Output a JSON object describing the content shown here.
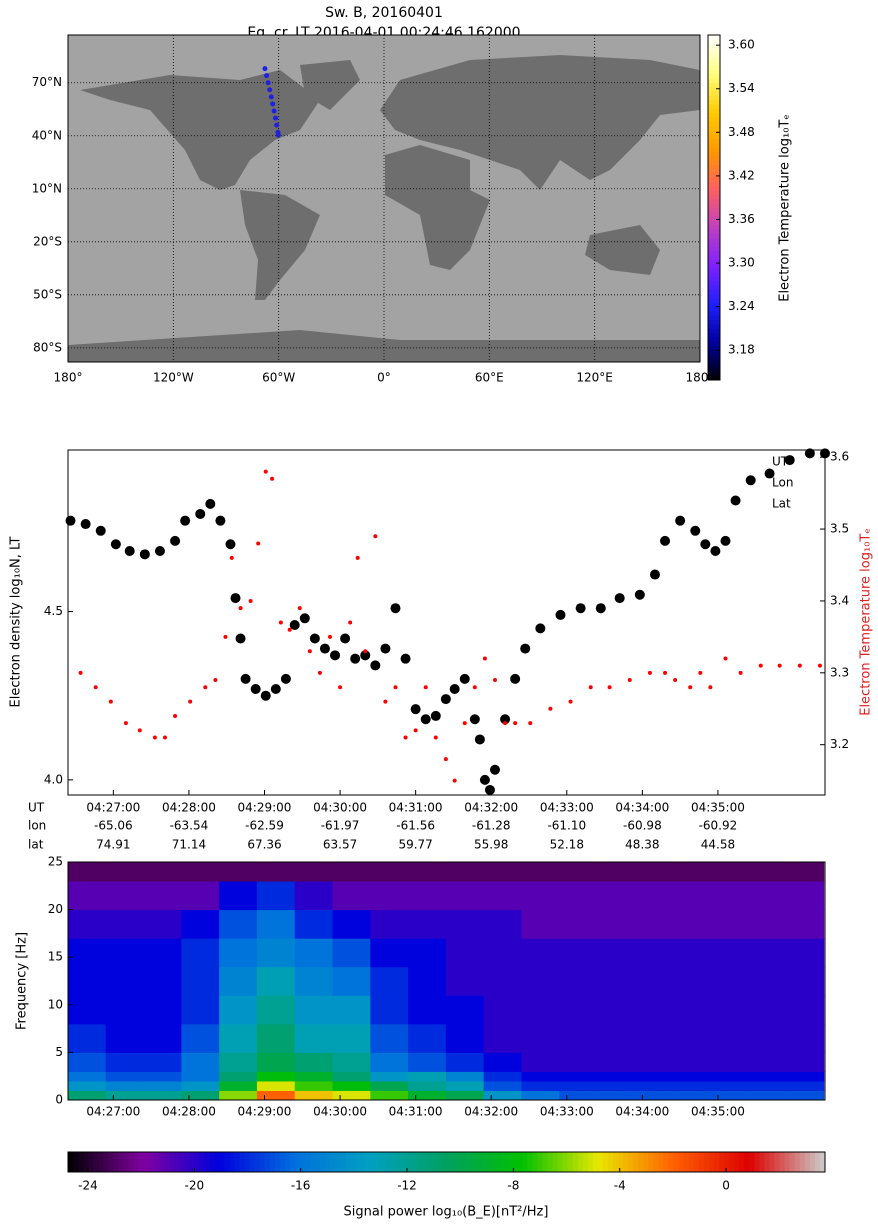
{
  "chart_data": [
    {
      "type": "map",
      "title": "Sw. B, 20160401",
      "subtitle": "Eq. cr. LT  2016-04-01 00:24:46.162000",
      "xlim": [
        -180,
        180
      ],
      "ylim": [
        -88,
        97
      ],
      "xticks": [
        {
          "value": -180,
          "label": "180°"
        },
        {
          "value": -120,
          "label": "120°W"
        },
        {
          "value": -60,
          "label": "60°W"
        },
        {
          "value": 0,
          "label": "0°"
        },
        {
          "value": 60,
          "label": "60°E"
        },
        {
          "value": 120,
          "label": "120°E"
        },
        {
          "value": 180,
          "label": "180°"
        }
      ],
      "yticks": [
        {
          "value": 70,
          "label": "70°N"
        },
        {
          "value": 40,
          "label": "40°N"
        },
        {
          "value": 10,
          "label": "10°N"
        },
        {
          "value": -20,
          "label": "20°S"
        },
        {
          "value": -50,
          "label": "50°S"
        },
        {
          "value": -80,
          "label": "80°S"
        }
      ],
      "grid": true,
      "color": "#2020e0",
      "x": [
        -67.8,
        -66.9,
        -66.0,
        -65.1,
        -64.2,
        -63.4,
        -62.6,
        -61.8,
        -61.1,
        -60.4,
        -60.2
      ],
      "y": [
        78,
        74,
        70,
        66,
        62,
        58,
        54,
        50,
        46,
        42,
        40.4
      ],
      "colorbar": {
        "label": "Electron Temperature log₁₀Tₑ",
        "lim": [
          3.139,
          3.614
        ],
        "ticks": [
          3.18,
          3.24,
          {
            "value": 3.3,
            "label": "3.30"
          },
          3.36,
          3.42,
          3.48,
          3.54,
          {
            "value": 3.6,
            "label": "3.60"
          }
        ],
        "colormap": [
          "#000000",
          "#0000a0",
          "#2020ff",
          "#8020ff",
          "#c040c0",
          "#ff6060",
          "#ff9900",
          "#ffcc00",
          "#ffff80",
          "#ffffff"
        ]
      }
    },
    {
      "type": "scatter",
      "ylabel": "Electron density log₁₀N, LT",
      "y2label": "Electron Temperature log₁₀Tₑ",
      "xlim": [
        "04:26:24",
        "04:36:25"
      ],
      "xticks": [
        "04:27:00",
        "04:28:00",
        "04:29:00",
        "04:30:00",
        "04:31:00",
        "04:32:00",
        "04:33:00",
        "04:34:00",
        "04:35:00"
      ],
      "ylim": [
        3.955,
        4.98
      ],
      "yticks": [
        {
          "value": 4,
          "label": "4.0"
        },
        4.5
      ],
      "y2lim": [
        3.13,
        3.61
      ],
      "y2ticks": [
        3.2,
        3.3,
        3.4,
        3.5,
        3.6
      ],
      "legend_labels": [
        "UT",
        "Lon",
        "Lat"
      ],
      "table": {
        "row_labels": [
          "UT",
          "lon",
          "lat"
        ],
        "lon": [
          "-65.06",
          "-63.54",
          "-62.59",
          "-61.97",
          "-61.56",
          "-61.28",
          "-61.10",
          "-60.98",
          "-60.92"
        ],
        "lat": [
          "74.91",
          "71.14",
          "67.36",
          "63.57",
          "59.77",
          "55.98",
          "52.18",
          "48.38",
          "44.58"
        ]
      },
      "series": [
        {
          "color": "#000000",
          "x": [
            "04:26:26",
            "04:26:38",
            "04:26:50",
            "04:27:02",
            "04:27:13",
            "04:27:25",
            "04:27:37",
            "04:27:49",
            "04:27:57",
            "04:28:09",
            "04:28:17",
            "04:28:25",
            "04:28:33",
            "04:28:37",
            "04:28:41",
            "04:28:45",
            "04:28:53",
            "04:29:01",
            "04:29:09",
            "04:29:17",
            "04:29:24",
            "04:29:32",
            "04:29:40",
            "04:29:48",
            "04:29:56",
            "04:30:04",
            "04:30:12",
            "04:30:20",
            "04:30:28",
            "04:30:36",
            "04:30:44",
            "04:30:52",
            "04:31:00",
            "04:31:08",
            "04:31:16",
            "04:31:24",
            "04:31:31",
            "04:31:39",
            "04:31:47",
            "04:31:51",
            "04:31:55",
            "04:31:59",
            "04:32:03",
            "04:32:11",
            "04:32:19",
            "04:32:27",
            "04:32:39",
            "04:32:55",
            "04:33:11",
            "04:33:27",
            "04:33:42",
            "04:33:58",
            "04:34:10",
            "04:34:18",
            "04:34:30",
            "04:34:42",
            "04:34:50",
            "04:34:58",
            "04:35:06",
            "04:35:14",
            "04:35:26",
            "04:35:41",
            "04:35:57",
            "04:36:13",
            "04:36:25"
          ],
          "values": [
            4.77,
            4.76,
            4.74,
            4.7,
            4.68,
            4.67,
            4.68,
            4.71,
            4.77,
            4.79,
            4.82,
            4.77,
            4.7,
            4.54,
            4.42,
            4.3,
            4.27,
            4.25,
            4.27,
            4.3,
            4.46,
            4.48,
            4.42,
            4.39,
            4.37,
            4.42,
            4.36,
            4.37,
            4.34,
            4.39,
            4.51,
            4.36,
            4.21,
            4.18,
            4.19,
            4.24,
            4.27,
            4.3,
            4.18,
            4.12,
            4.0,
            3.97,
            4.03,
            4.18,
            4.3,
            4.39,
            4.45,
            4.49,
            4.51,
            4.51,
            4.54,
            4.55,
            4.61,
            4.71,
            4.77,
            4.74,
            4.7,
            4.68,
            4.71,
            4.83,
            4.89,
            4.91,
            4.95,
            4.97,
            4.97
          ]
        },
        {
          "color": "#ff0000",
          "axis": "y2",
          "x": [
            "04:26:34",
            "04:26:46",
            "04:26:58",
            "04:27:10",
            "04:27:21",
            "04:27:33",
            "04:27:41",
            "04:27:49",
            "04:28:01",
            "04:28:13",
            "04:28:21",
            "04:28:29",
            "04:28:34",
            "04:28:41",
            "04:28:49",
            "04:28:55",
            "04:29:01",
            "04:29:06",
            "04:29:13",
            "04:29:20",
            "04:29:28",
            "04:29:36",
            "04:29:44",
            "04:29:52",
            "04:30:00",
            "04:30:08",
            "04:30:14",
            "04:30:20",
            "04:30:28",
            "04:30:36",
            "04:30:44",
            "04:30:52",
            "04:31:00",
            "04:31:08",
            "04:31:16",
            "04:31:24",
            "04:31:31",
            "04:31:39",
            "04:31:47",
            "04:31:55",
            "04:32:03",
            "04:32:11",
            "04:32:19",
            "04:32:31",
            "04:32:47",
            "04:33:03",
            "04:33:19",
            "04:33:34",
            "04:33:50",
            "04:34:06",
            "04:34:18",
            "04:34:26",
            "04:34:38",
            "04:34:46",
            "04:34:54",
            "04:35:06",
            "04:35:18",
            "04:35:34",
            "04:35:49",
            "04:36:05",
            "04:36:21"
          ],
          "values": [
            3.3,
            3.28,
            3.26,
            3.23,
            3.22,
            3.21,
            3.21,
            3.24,
            3.26,
            3.28,
            3.29,
            3.35,
            3.46,
            3.39,
            3.4,
            3.48,
            3.58,
            3.57,
            3.37,
            3.36,
            3.39,
            3.33,
            3.3,
            3.35,
            3.28,
            3.37,
            3.46,
            3.33,
            3.49,
            3.26,
            3.28,
            3.21,
            3.22,
            3.28,
            3.21,
            3.18,
            3.15,
            3.23,
            3.28,
            3.32,
            3.29,
            3.23,
            3.23,
            3.23,
            3.25,
            3.26,
            3.28,
            3.28,
            3.29,
            3.3,
            3.3,
            3.29,
            3.28,
            3.3,
            3.28,
            3.32,
            3.3,
            3.31,
            3.31,
            3.31,
            3.31
          ]
        }
      ]
    },
    {
      "type": "heatmap",
      "ylabel": "Frequency [Hz]",
      "xlim": [
        "04:26:24",
        "04:36:25"
      ],
      "xticks": [
        "04:27:00",
        "04:28:00",
        "04:29:00",
        "04:30:00",
        "04:31:00",
        "04:32:00",
        "04:33:00",
        "04:34:00",
        "04:35:00"
      ],
      "ylim": [
        0,
        25
      ],
      "yticks": [
        0,
        5,
        10,
        15,
        20,
        25
      ],
      "x_bins": [
        "04:26:24",
        "04:26:54",
        "04:27:24",
        "04:27:54",
        "04:28:24",
        "04:28:54",
        "04:29:24",
        "04:29:54",
        "04:30:24",
        "04:30:54",
        "04:31:24",
        "04:31:54",
        "04:32:24",
        "04:32:54",
        "04:33:24",
        "04:33:54",
        "04:34:24",
        "04:34:54",
        "04:35:24",
        "04:35:54",
        "04:36:24"
      ],
      "y_bins": [
        0,
        1,
        2,
        3,
        5,
        8,
        11,
        14,
        17,
        20,
        23,
        25
      ],
      "z": [
        [
          -11,
          -12,
          -12,
          -11,
          -6,
          -2,
          -4,
          -5,
          -7,
          -9,
          -10,
          -14,
          -16,
          -17,
          -17,
          -17,
          -17,
          -17,
          -17,
          -17
        ],
        [
          -14,
          -15,
          -15,
          -14,
          -9,
          -5,
          -7,
          -8,
          -10,
          -12,
          -13,
          -17,
          -18,
          -18,
          -18,
          -18,
          -18,
          -18,
          -18,
          -18
        ],
        [
          -16,
          -17,
          -17,
          -16,
          -11,
          -8,
          -9,
          -11,
          -14,
          -13,
          -15,
          -18,
          -19,
          -19,
          -19,
          -19,
          -19,
          -19,
          -19,
          -19
        ],
        [
          -17,
          -18,
          -18,
          -16,
          -12,
          -10,
          -11,
          -12,
          -16,
          -17,
          -18,
          -19,
          -20,
          -20,
          -20,
          -20,
          -20,
          -20,
          -20,
          -20
        ],
        [
          -18,
          -19,
          -19,
          -17,
          -13,
          -11,
          -13,
          -13,
          -17,
          -18,
          -19,
          -20,
          -20,
          -20,
          -20,
          -20,
          -20,
          -20,
          -20,
          -20
        ],
        [
          -19,
          -19,
          -19,
          -18,
          -14,
          -12,
          -14,
          -14,
          -18,
          -19,
          -19,
          -20,
          -20,
          -20,
          -20,
          -20,
          -20,
          -20,
          -20,
          -20
        ],
        [
          -19,
          -19,
          -19,
          -18,
          -15,
          -13,
          -15,
          -16,
          -18,
          -19,
          -20,
          -20,
          -20,
          -20,
          -20,
          -20,
          -20,
          -20,
          -20,
          -20
        ],
        [
          -19,
          -19,
          -19,
          -18,
          -16,
          -15,
          -16,
          -17,
          -19,
          -19,
          -20,
          -20,
          -20,
          -20,
          -20,
          -20,
          -20,
          -20,
          -20,
          -20
        ],
        [
          -20,
          -20,
          -20,
          -19,
          -17,
          -16,
          -18,
          -19,
          -20,
          -20,
          -20,
          -20,
          -21,
          -21,
          -21,
          -21,
          -21,
          -21,
          -21,
          -21
        ],
        [
          -21,
          -21,
          -21,
          -21,
          -19,
          -18,
          -20,
          -21,
          -21,
          -21,
          -21,
          -21,
          -21,
          -21,
          -21,
          -21,
          -21,
          -21,
          -21,
          -21
        ],
        [
          -23,
          -23,
          -23,
          -23,
          -23,
          -23,
          -23,
          -23,
          -23,
          -23,
          -23,
          -23,
          -23,
          -23,
          -23,
          -23,
          -23,
          -23,
          -23,
          -23
        ]
      ],
      "colorbar": {
        "label": "Signal power log₁₀(B_E)[nT²/Hz]",
        "lim": [
          -24.75,
          3.72
        ],
        "ticks": [
          -24,
          -20,
          -16,
          -12,
          -8,
          -4,
          0
        ],
        "colormap": [
          "#000000",
          "#8000a0",
          "#0000dd",
          "#0070dd",
          "#00a0c0",
          "#00a060",
          "#00c000",
          "#e8e800",
          "#ff6000",
          "#dd0000",
          "#cccccc"
        ]
      }
    }
  ]
}
